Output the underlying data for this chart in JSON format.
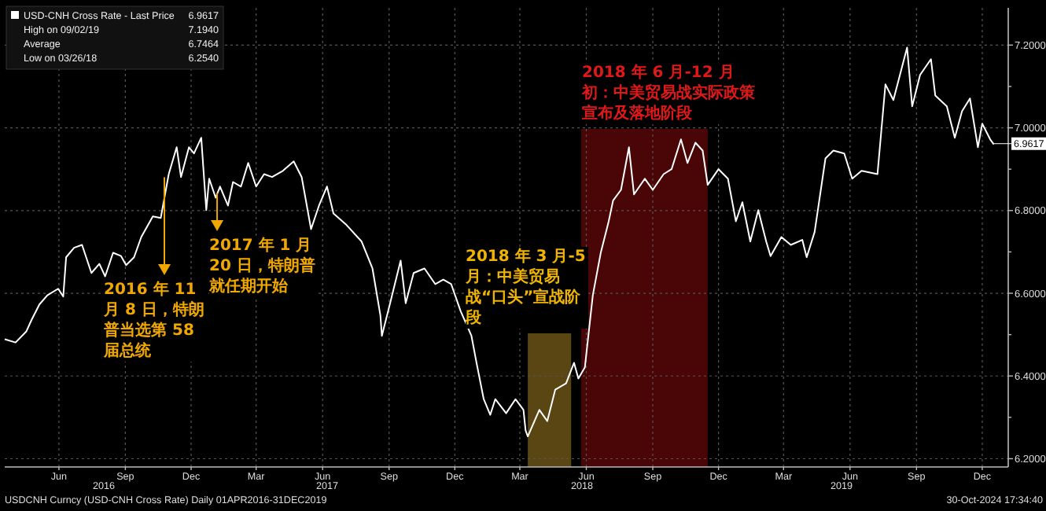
{
  "chart_data": {
    "type": "line",
    "legend": "top left",
    "grid": true,
    "xlim": [
      "2016-04-01",
      "2020-01-20"
    ],
    "ylim": [
      6.18,
      7.29
    ],
    "xticks": [
      {
        "value": "2016-06-15",
        "label": "Jun"
      },
      {
        "value": "2016-09-15",
        "label": "Sep"
      },
      {
        "value": "2016-12-15",
        "label": "Dec"
      },
      {
        "value": "2017-03-15",
        "label": "Mar"
      },
      {
        "value": "2017-06-15",
        "label": "Jun"
      },
      {
        "value": "2017-09-15",
        "label": "Sep"
      },
      {
        "value": "2017-12-15",
        "label": "Dec"
      },
      {
        "value": "2018-03-15",
        "label": "Mar"
      },
      {
        "value": "2018-06-15",
        "label": "Jun"
      },
      {
        "value": "2018-09-15",
        "label": "Sep"
      },
      {
        "value": "2018-12-15",
        "label": "Dec"
      },
      {
        "value": "2019-03-15",
        "label": "Mar"
      },
      {
        "value": "2019-06-15",
        "label": "Jun"
      },
      {
        "value": "2019-09-15",
        "label": "Sep"
      },
      {
        "value": "2019-12-15",
        "label": "Dec"
      }
    ],
    "yticks": [
      {
        "value": 6.2,
        "label": "6.2000"
      },
      {
        "value": 6.3,
        "label": null
      },
      {
        "value": 6.4,
        "label": "6.4000"
      },
      {
        "value": 6.5,
        "label": null
      },
      {
        "value": 6.6,
        "label": "6.6000"
      },
      {
        "value": 6.7,
        "label": null
      },
      {
        "value": 6.8,
        "label": "6.8000"
      },
      {
        "value": 6.9,
        "label": null
      },
      {
        "value": 7.0,
        "label": "7.0000"
      },
      {
        "value": 7.1,
        "label": null
      },
      {
        "value": 7.2,
        "label": "7.2000"
      }
    ],
    "x": [
      "2016-04-01",
      "2016-04-16",
      "2016-05-01",
      "2016-05-08",
      "2016-05-19",
      "2016-05-30",
      "2016-06-14",
      "2016-06-21",
      "2016-06-25",
      "2016-07-06",
      "2016-07-17",
      "2016-07-30",
      "2016-08-10",
      "2016-08-18",
      "2016-08-29",
      "2016-09-09",
      "2016-09-16",
      "2016-09-27",
      "2016-10-07",
      "2016-10-23",
      "2016-11-03",
      "2016-11-14",
      "2016-11-25",
      "2016-12-01",
      "2016-12-12",
      "2016-12-19",
      "2016-12-29",
      "2017-01-05",
      "2017-01-09",
      "2017-01-18",
      "2017-01-24",
      "2017-02-04",
      "2017-02-11",
      "2017-02-22",
      "2017-03-04",
      "2017-03-15",
      "2017-03-26",
      "2017-04-06",
      "2017-04-21",
      "2017-05-06",
      "2017-05-17",
      "2017-05-30",
      "2017-06-10",
      "2017-06-21",
      "2017-06-30",
      "2017-07-17",
      "2017-08-08",
      "2017-08-23",
      "2017-09-03",
      "2017-09-05",
      "2017-09-16",
      "2017-10-01",
      "2017-10-08",
      "2017-10-19",
      "2017-11-03",
      "2017-11-18",
      "2017-11-29",
      "2017-12-10",
      "2017-12-23",
      "2018-01-07",
      "2018-01-14",
      "2018-01-24",
      "2018-02-02",
      "2018-02-09",
      "2018-02-24",
      "2018-03-09",
      "2018-03-20",
      "2018-03-23",
      "2018-03-26",
      "2018-04-11",
      "2018-04-22",
      "2018-05-03",
      "2018-05-18",
      "2018-05-29",
      "2018-06-04",
      "2018-06-13",
      "2018-06-24",
      "2018-07-05",
      "2018-07-16",
      "2018-07-22",
      "2018-08-02",
      "2018-08-13",
      "2018-08-20",
      "2018-09-04",
      "2018-09-15",
      "2018-09-30",
      "2018-10-11",
      "2018-10-24",
      "2018-11-02",
      "2018-11-13",
      "2018-11-23",
      "2018-11-30",
      "2018-12-15",
      "2018-12-28",
      "2019-01-08",
      "2019-01-17",
      "2019-01-28",
      "2019-02-08",
      "2019-02-19",
      "2019-02-25",
      "2019-03-12",
      "2019-03-25",
      "2019-04-10",
      "2019-04-16",
      "2019-04-27",
      "2019-05-12",
      "2019-05-23",
      "2019-06-07",
      "2019-06-18",
      "2019-07-01",
      "2019-07-23",
      "2019-08-03",
      "2019-08-14",
      "2019-09-02",
      "2019-09-09",
      "2019-09-20",
      "2019-10-05",
      "2019-10-11",
      "2019-10-27",
      "2019-11-07",
      "2019-11-17",
      "2019-11-28",
      "2019-12-09",
      "2019-12-15",
      "2019-12-26",
      "2019-12-31"
    ],
    "series": [
      {
        "name": "USD-CNH Cross Rate - Last Price",
        "color": "#ffffff",
        "values": [
          6.489,
          6.481,
          6.508,
          6.535,
          6.573,
          6.595,
          6.611,
          6.592,
          6.687,
          6.71,
          6.717,
          6.649,
          6.671,
          6.641,
          6.698,
          6.69,
          6.668,
          6.687,
          6.736,
          6.786,
          6.782,
          6.888,
          6.953,
          6.881,
          6.953,
          6.938,
          6.976,
          6.801,
          6.877,
          6.831,
          6.858,
          6.812,
          6.869,
          6.858,
          6.915,
          6.858,
          6.888,
          6.881,
          6.896,
          6.919,
          6.881,
          6.755,
          6.812,
          6.858,
          6.793,
          6.767,
          6.725,
          6.66,
          6.546,
          6.497,
          6.573,
          6.679,
          6.576,
          6.649,
          6.66,
          6.622,
          6.633,
          6.622,
          6.557,
          6.497,
          6.432,
          6.344,
          6.306,
          6.344,
          6.31,
          6.344,
          6.318,
          6.268,
          6.254,
          6.318,
          6.291,
          6.367,
          6.382,
          6.432,
          6.394,
          6.421,
          6.595,
          6.698,
          6.774,
          6.824,
          6.85,
          6.953,
          6.839,
          6.877,
          6.85,
          6.888,
          6.9,
          6.972,
          6.915,
          6.964,
          6.945,
          6.862,
          6.9,
          6.877,
          6.774,
          6.82,
          6.725,
          6.801,
          6.725,
          6.69,
          6.736,
          6.717,
          6.729,
          6.687,
          6.748,
          6.926,
          6.945,
          6.938,
          6.877,
          6.896,
          6.888,
          7.105,
          7.067,
          7.194,
          7.052,
          7.128,
          7.166,
          7.078,
          7.052,
          6.976,
          7.04,
          7.071,
          6.953,
          7.01,
          6.972,
          6.96
        ]
      }
    ],
    "bands": [
      {
        "axis": "x",
        "from": "2018-03-26",
        "to": "2018-05-25",
        "color": "#5a4612",
        "label": "2018 年 3 月-5 月：中美贸易战“口头”宣战阶段"
      },
      {
        "axis": "x",
        "from": "2018-06-08",
        "to": "2018-11-30",
        "color": "#4a0606",
        "label": "2018 年 6 月-12 月初：中美贸易战实际政策宣布及落地阶段"
      }
    ],
    "annotations": [
      {
        "text": "2016 年 11 月 8 日，特朗普当选第 58 届总统",
        "x": "2016-11-08",
        "y": 6.888
      },
      {
        "text": "2017 年 1 月 20 日，特朗普就任期开始",
        "x": "2017-01-20",
        "y": 6.85
      },
      {
        "text": "6.9617",
        "x": "2019-12-31",
        "y": 6.9617
      },
      "6.9617",
      "High on 09/02/19",
      "7.1940",
      "Average",
      "6.7464",
      "Low on 03/26/18",
      "6.2540",
      "2016",
      "2017",
      "2018",
      "2019",
      "USDCNH Curncy (USD-CNH Cross Rate)  Daily 01APR2016-31DEC2019",
      "30-Oct-2024 17:34:40"
    ]
  }
}
